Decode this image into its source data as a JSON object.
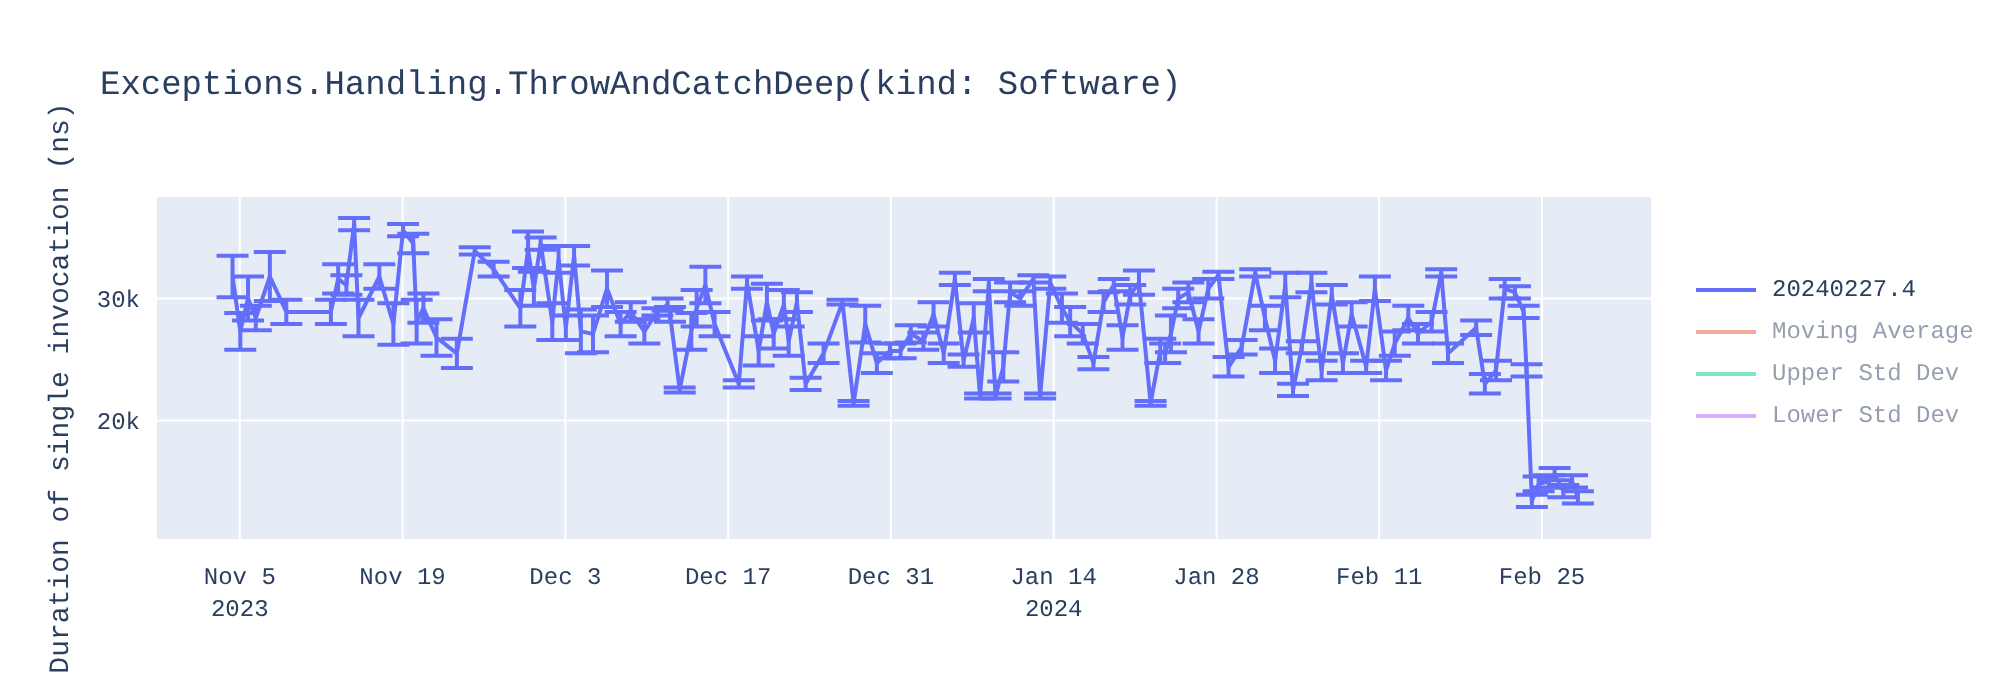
{
  "chart_data": {
    "type": "line",
    "title": "Exceptions.Handling.ThrowAndCatchDeep(kind: Software)",
    "ylabel": "Duration of single invocation (ns)",
    "xlim": [
      "2023-10-28T19:00",
      "2024-03-05T11:00"
    ],
    "xticks": [
      {
        "value": "2023-11-05",
        "label": "Nov 5\n2023"
      },
      {
        "value": "2023-11-19",
        "label": "Nov 19"
      },
      {
        "value": "2023-12-03",
        "label": "Dec 3"
      },
      {
        "value": "2023-12-17",
        "label": "Dec 17"
      },
      {
        "value": "2023-12-31",
        "label": "Dec 31"
      },
      {
        "value": "2024-01-14",
        "label": "Jan 14\n2024"
      },
      {
        "value": "2024-01-28",
        "label": "Jan 28"
      },
      {
        "value": "2024-02-11",
        "label": "Feb 11"
      },
      {
        "value": "2024-02-25",
        "label": "Feb 25"
      }
    ],
    "ylim": [
      10200,
      38400
    ],
    "yticks": [
      {
        "value": 20000,
        "label": "20k"
      },
      {
        "value": 30000,
        "label": "30k"
      }
    ],
    "grid": true,
    "legend": "top right",
    "marker": "none",
    "line_style": "solid",
    "series": [
      {
        "name": "20240227.4",
        "color": "#636efa",
        "x": [
          "2023-11-04T09:00",
          "2023-11-05T01:00",
          "2023-11-05T17:00",
          "2023-11-06T09:00",
          "2023-11-07T14:00",
          "2023-11-09T00:00",
          "2023-11-12T20:00",
          "2023-11-13T11:00",
          "2023-11-14T04:00",
          "2023-11-14T20:00",
          "2023-11-15T05:00",
          "2023-11-17T00:00",
          "2023-11-18T05:00",
          "2023-11-19T01:00",
          "2023-11-19T22:00",
          "2023-11-20T05:00",
          "2023-11-20T19:00",
          "2023-11-21T22:00",
          "2023-11-23T16:00",
          "2023-11-25T05:00",
          "2023-11-26T20:00",
          "2023-11-29T03:00",
          "2023-11-29T19:00",
          "2023-11-30T07:00",
          "2023-11-30T21:00",
          "2023-12-01T21:00",
          "2023-12-02T10:00",
          "2023-12-03T01:00",
          "2023-12-03T18:00",
          "2023-12-04T08:00",
          "2023-12-05T09:00",
          "2023-12-06T14:00",
          "2023-12-07T18:00",
          "2023-12-08T15:00",
          "2023-12-09T19:00",
          "2023-12-10T22:00",
          "2023-12-11T19:00",
          "2023-12-12T00:00",
          "2023-12-12T20:00",
          "2023-12-13T20:00",
          "2023-12-14T07:00",
          "2023-12-15T01:00",
          "2023-12-15T20:00",
          "2023-12-17T22:00",
          "2023-12-18T15:00",
          "2023-12-19T15:00",
          "2023-12-20T08:00",
          "2023-12-20T22:00",
          "2023-12-21T19:00",
          "2023-12-22T05:00",
          "2023-12-22T22:00",
          "2023-12-23T16:00",
          "2023-12-25T05:00",
          "2023-12-26T20:00",
          "2023-12-27T19:00",
          "2023-12-28T19:00",
          "2023-12-29T19:00",
          "2023-12-30T22:00",
          "2023-12-31T20:00",
          "2024-01-01T17:00",
          "2024-01-02T19:00",
          "2024-01-03T16:00",
          "2024-01-04T13:00",
          "2024-01-05T12:00",
          "2024-01-06T06:00",
          "2024-01-07T03:00",
          "2024-01-07T16:00",
          "2024-01-08T10:00",
          "2024-01-09T00:00",
          "2024-01-09T16:00",
          "2024-01-10T06:00",
          "2024-01-11T03:00",
          "2024-01-12T06:00",
          "2024-01-12T20:00",
          "2024-01-13T17:00",
          "2024-01-14T17:00",
          "2024-01-15T10:00",
          "2024-01-16T12:00",
          "2024-01-17T10:00",
          "2024-01-18T07:00",
          "2024-01-19T04:00",
          "2024-01-19T22:00",
          "2024-01-20T14:00",
          "2024-01-21T08:00",
          "2024-01-22T08:00",
          "2024-01-23T04:00",
          "2024-01-23T14:00",
          "2024-01-24T02:00",
          "2024-01-24T17:00",
          "2024-01-25T14:00",
          "2024-01-26T11:00",
          "2024-01-27T07:00",
          "2024-01-28T04:00",
          "2024-01-29T01:00",
          "2024-01-30T04:00",
          "2024-01-31T08:00",
          "2024-02-01T04:00",
          "2024-02-02T01:00",
          "2024-02-02T22:00",
          "2024-02-03T14:00",
          "2024-02-04T08:00",
          "2024-02-05T04:00",
          "2024-02-06T01:00",
          "2024-02-06T22:00",
          "2024-02-07T21:00",
          "2024-02-08T15:00",
          "2024-02-09T21:00",
          "2024-02-10T15:00",
          "2024-02-11T14:00",
          "2024-02-12T08:00",
          "2024-02-13T12:00",
          "2024-02-14T08:00",
          "2024-02-15T12:00",
          "2024-02-16T08:00",
          "2024-02-16T22:00",
          "2024-02-19T08:00",
          "2024-02-20T02:00",
          "2024-02-21T01:00",
          "2024-02-21T19:00",
          "2024-02-22T16:00",
          "2024-02-23T10:00",
          "2024-02-23T16:00",
          "2024-02-24T03:00",
          "2024-02-24T17:00",
          "2024-02-25T14:00",
          "2024-02-26T02:00",
          "2024-02-26T20:00",
          "2024-02-27T14:00",
          "2024-02-28T02:00"
        ],
        "values": [
          31800,
          27300,
          30000,
          28400,
          31800,
          28900,
          28900,
          31600,
          31100,
          36100,
          28400,
          31800,
          27900,
          35600,
          34500,
          28100,
          29200,
          26800,
          25500,
          33900,
          32400,
          29200,
          34000,
          30800,
          34500,
          28100,
          33200,
          27600,
          33500,
          27300,
          27100,
          30800,
          27900,
          28900,
          27300,
          28900,
          29500,
          28700,
          22500,
          27300,
          29200,
          31100,
          27900,
          23000,
          31300,
          25700,
          29700,
          27100,
          29500,
          26500,
          29700,
          23000,
          25500,
          29700,
          21400,
          27900,
          24700,
          25700,
          25700,
          27100,
          26500,
          28700,
          25500,
          31600,
          24900,
          28400,
          22000,
          31100,
          22000,
          24400,
          30500,
          30000,
          31600,
          22000,
          31300,
          29200,
          28100,
          27100,
          24700,
          29700,
          31100,
          26800,
          30300,
          31300,
          21400,
          25700,
          25500,
          27100,
          30000,
          30500,
          27300,
          30800,
          31900,
          24400,
          26000,
          32100,
          28400,
          24900,
          31100,
          22500,
          26000,
          31300,
          24100,
          30300,
          24700,
          28700,
          24400,
          30800,
          24100,
          26300,
          28400,
          27100,
          28100,
          32100,
          25500,
          27600,
          23000,
          24100,
          30800,
          30500,
          28900,
          24100,
          13400,
          14800,
          15000,
          15600,
          14200,
          15000,
          13700
        ],
        "errors": [
          1700,
          1500,
          1800,
          1000,
          2000,
          1000,
          1000,
          1200,
          800,
          500,
          1500,
          1000,
          1700,
          500,
          800,
          1800,
          1200,
          1500,
          1200,
          300,
          600,
          1500,
          1500,
          1400,
          500,
          1500,
          1100,
          1000,
          800,
          1800,
          1500,
          1500,
          1000,
          800,
          1000,
          300,
          500,
          600,
          200,
          1500,
          1500,
          1500,
          1000,
          300,
          500,
          1200,
          1500,
          1200,
          1200,
          1200,
          800,
          500,
          800,
          200,
          200,
          1500,
          800,
          600,
          600,
          700,
          700,
          1000,
          800,
          500,
          500,
          1200,
          200,
          500,
          200,
          1200,
          800,
          600,
          300,
          200,
          500,
          1200,
          1200,
          800,
          500,
          800,
          500,
          1000,
          800,
          1000,
          200,
          1000,
          800,
          1500,
          800,
          800,
          1000,
          800,
          300,
          800,
          600,
          300,
          1000,
          1000,
          1000,
          500,
          500,
          800,
          800,
          800,
          800,
          1000,
          500,
          1000,
          800,
          1000,
          1000,
          800,
          800,
          300,
          800,
          600,
          800,
          800,
          800,
          500,
          500,
          500,
          500,
          600,
          500,
          500,
          500,
          500,
          500
        ]
      },
      {
        "name": "Moving Average",
        "color": "#ef553b"
      },
      {
        "name": "Upper Std Dev",
        "color": "#00cc96"
      },
      {
        "name": "Lower Std Dev",
        "color": "#ab63fa"
      }
    ]
  }
}
